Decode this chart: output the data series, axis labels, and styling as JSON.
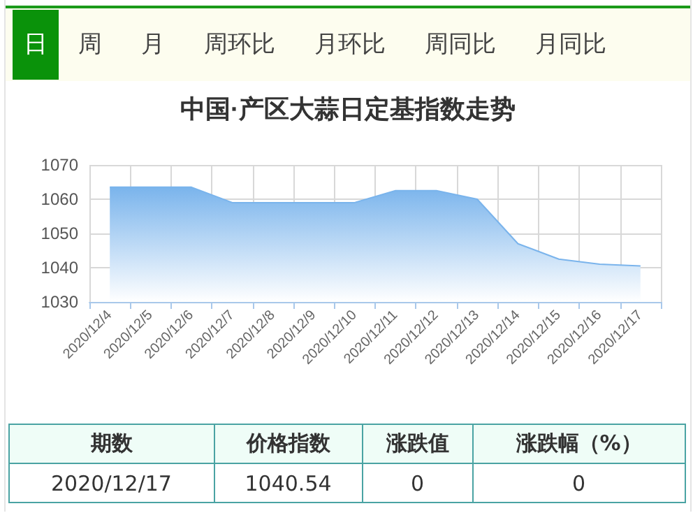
{
  "chart_data": {
    "type": "area",
    "title": "中国·产区大蒜日定基指数走势",
    "categories": [
      "2020/12/4",
      "2020/12/5",
      "2020/12/6",
      "2020/12/7",
      "2020/12/8",
      "2020/12/9",
      "2020/12/10",
      "2020/12/11",
      "2020/12/12",
      "2020/12/13",
      "2020/12/14",
      "2020/12/15",
      "2020/12/16",
      "2020/12/17"
    ],
    "series": [
      {
        "color": "#7ab4ec",
        "values": [
          1063.5,
          1063.5,
          1063.5,
          1059,
          1059,
          1059,
          1059,
          1062.5,
          1062.5,
          1060,
          1047,
          1042.5,
          1041,
          1040.5
        ]
      }
    ],
    "ylim": [
      1030,
      1070
    ],
    "yticks": [
      1030,
      1040,
      1050,
      1060,
      1070
    ],
    "grid": true,
    "marker": "none",
    "annotations": [
      "日",
      "周",
      "月",
      "周环比",
      "月环比",
      "周同比",
      "月同比",
      "期数",
      "价格指数",
      "涨跌值",
      "涨跌幅（%）",
      "2020/12/17",
      "1040.54",
      "0",
      "0"
    ]
  }
}
